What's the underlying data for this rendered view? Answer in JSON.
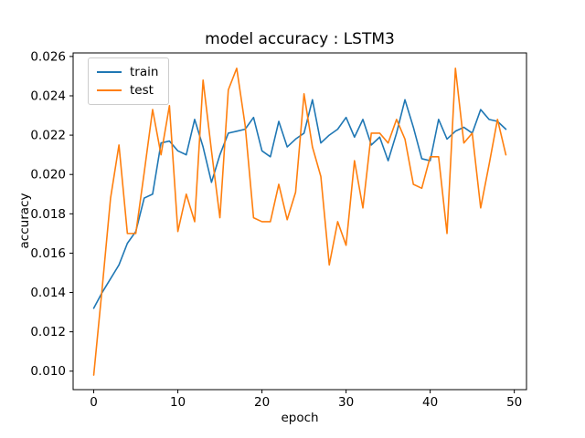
{
  "figure": {
    "title": "model accuracy : LSTM3"
  },
  "axes": {
    "xlabel": "epoch",
    "ylabel": "accuracy"
  },
  "legend": {
    "position": "upper left",
    "items": [
      {
        "label": "train",
        "color": "#1f77b4"
      },
      {
        "label": "test",
        "color": "#ff7f0e"
      }
    ]
  },
  "chart_data": {
    "type": "line",
    "title": "model accuracy : LSTM3",
    "xlabel": "epoch",
    "ylabel": "accuracy",
    "xlim": [
      -2.45,
      51.45
    ],
    "ylim": [
      0.00906,
      0.02618
    ],
    "xticks": [
      0,
      10,
      20,
      30,
      40,
      50
    ],
    "xtick_labels": [
      "0",
      "10",
      "20",
      "30",
      "40",
      "50"
    ],
    "yticks": [
      0.01,
      0.012,
      0.014,
      0.016,
      0.018,
      0.02,
      0.022,
      0.024,
      0.026
    ],
    "ytick_labels": [
      "0.010",
      "0.012",
      "0.014",
      "0.016",
      "0.018",
      "0.020",
      "0.022",
      "0.024",
      "0.026"
    ],
    "grid": false,
    "legend_position": "upper left",
    "x_is_index": true,
    "series": [
      {
        "name": "train",
        "color": "#1f77b4",
        "values": [
          0.0132,
          0.014,
          0.0147,
          0.0154,
          0.0165,
          0.0171,
          0.0188,
          0.019,
          0.0216,
          0.0217,
          0.0212,
          0.021,
          0.0228,
          0.0214,
          0.0196,
          0.021,
          0.0221,
          0.0222,
          0.0223,
          0.0229,
          0.0212,
          0.0209,
          0.0227,
          0.0214,
          0.0218,
          0.0221,
          0.0238,
          0.0216,
          0.022,
          0.0223,
          0.0229,
          0.0219,
          0.0228,
          0.0215,
          0.0219,
          0.0207,
          0.0221,
          0.0238,
          0.0224,
          0.0208,
          0.0207,
          0.0228,
          0.0218,
          0.0222,
          0.0224,
          0.0221,
          0.0233,
          0.0228,
          0.0227,
          0.0223
        ]
      },
      {
        "name": "test",
        "color": "#ff7f0e",
        "values": [
          0.0098,
          0.0142,
          0.0188,
          0.0215,
          0.017,
          0.017,
          0.0201,
          0.0233,
          0.021,
          0.0235,
          0.0171,
          0.019,
          0.0176,
          0.0248,
          0.0212,
          0.0178,
          0.0243,
          0.0254,
          0.0225,
          0.0178,
          0.0176,
          0.0176,
          0.0195,
          0.0177,
          0.0191,
          0.0241,
          0.0214,
          0.0199,
          0.0154,
          0.0176,
          0.0164,
          0.0207,
          0.0183,
          0.0221,
          0.0221,
          0.0216,
          0.0228,
          0.0218,
          0.0195,
          0.0193,
          0.0209,
          0.0209,
          0.017,
          0.0254,
          0.0216,
          0.0221,
          0.0183,
          0.0205,
          0.0228,
          0.021
        ]
      }
    ]
  }
}
